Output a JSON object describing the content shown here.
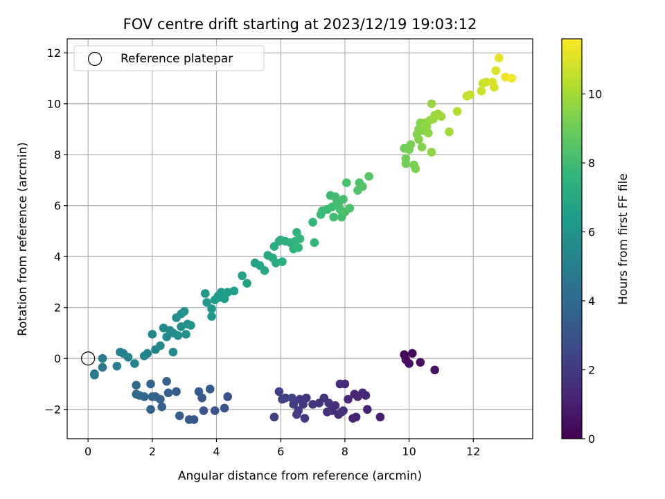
{
  "chart_data": {
    "type": "scatter",
    "title": "FOV centre drift starting at 2023/12/19 19:03:12",
    "xlabel": "Angular distance from reference (arcmin)",
    "ylabel": "Rotation from reference (arcmin)",
    "colorbar_label": "Hours from first FF file",
    "xlim": [
      -0.65,
      13.85
    ],
    "ylim": [
      -3.15,
      12.55
    ],
    "x_ticks": [
      0,
      2,
      4,
      6,
      8,
      10,
      12
    ],
    "y_ticks": [
      -2,
      0,
      2,
      4,
      6,
      8,
      10,
      12
    ],
    "colorbar_range": [
      0,
      11.6
    ],
    "colorbar_ticks": [
      0,
      2,
      4,
      6,
      8,
      10
    ],
    "colormap": "viridis",
    "grid": true,
    "legend": {
      "position": "top-left",
      "entry": "Reference platepar"
    },
    "reference_point": {
      "x": 0,
      "y": 0
    },
    "points": [
      [
        9.85,
        0.15,
        0.1
      ],
      [
        10.1,
        0.2,
        0.2
      ],
      [
        9.9,
        -0.05,
        0.3
      ],
      [
        10.0,
        -0.2,
        0.4
      ],
      [
        10.35,
        -0.15,
        0.5
      ],
      [
        10.8,
        -0.45,
        0.6
      ],
      [
        9.1,
        -2.3,
        1.0
      ],
      [
        8.7,
        -2.0,
        1.1
      ],
      [
        8.35,
        -2.3,
        1.2
      ],
      [
        8.3,
        -1.4,
        1.3
      ],
      [
        8.65,
        -1.45,
        1.35
      ],
      [
        8.0,
        -1.0,
        1.4
      ],
      [
        7.85,
        -1.0,
        1.45
      ],
      [
        7.95,
        -2.05,
        1.5
      ],
      [
        7.8,
        -2.2,
        1.55
      ],
      [
        7.6,
        -2.0,
        1.6
      ],
      [
        7.5,
        -1.75,
        1.65
      ],
      [
        7.35,
        -1.55,
        1.7
      ],
      [
        7.2,
        -1.75,
        1.75
      ],
      [
        7.0,
        -1.8,
        1.8
      ],
      [
        6.8,
        -1.55,
        1.85
      ],
      [
        6.6,
        -1.6,
        1.9
      ],
      [
        6.75,
        -2.35,
        1.95
      ],
      [
        6.55,
        -2.05,
        2.0
      ],
      [
        6.4,
        -1.8,
        2.05
      ],
      [
        6.15,
        -1.55,
        2.1
      ],
      [
        5.95,
        -1.3,
        2.15
      ],
      [
        5.8,
        -2.3,
        2.2
      ],
      [
        6.05,
        -1.6,
        2.25
      ],
      [
        6.35,
        -1.55,
        2.3
      ],
      [
        7.6,
        -2.05,
        1.3
      ],
      [
        8.4,
        -1.5,
        1.25
      ],
      [
        7.45,
        -2.1,
        1.6
      ],
      [
        7.7,
        -1.85,
        1.5
      ],
      [
        8.1,
        -1.6,
        1.4
      ],
      [
        8.25,
        -2.35,
        1.2
      ],
      [
        7.9,
        -2.1,
        1.7
      ],
      [
        8.55,
        -1.35,
        1.3
      ],
      [
        6.5,
        -2.2,
        2.0
      ],
      [
        6.7,
        -1.8,
        1.9
      ],
      [
        4.35,
        -1.5,
        3.0
      ],
      [
        4.25,
        -1.95,
        3.05
      ],
      [
        3.95,
        -2.05,
        3.1
      ],
      [
        3.6,
        -2.05,
        3.15
      ],
      [
        3.55,
        -1.55,
        3.2
      ],
      [
        3.45,
        -1.3,
        3.25
      ],
      [
        3.8,
        -1.2,
        3.3
      ],
      [
        3.15,
        -2.4,
        3.35
      ],
      [
        2.85,
        -2.25,
        3.4
      ],
      [
        2.75,
        -1.3,
        3.45
      ],
      [
        2.5,
        -1.35,
        3.5
      ],
      [
        2.45,
        -0.9,
        3.55
      ],
      [
        2.3,
        -1.9,
        3.6
      ],
      [
        2.25,
        -1.6,
        3.65
      ],
      [
        2.1,
        -1.5,
        3.7
      ],
      [
        1.95,
        -1.0,
        3.75
      ],
      [
        1.95,
        -2.0,
        3.8
      ],
      [
        1.75,
        -1.5,
        3.85
      ],
      [
        1.6,
        -1.45,
        3.9
      ],
      [
        1.5,
        -1.4,
        3.95
      ],
      [
        1.5,
        -1.05,
        4.0
      ],
      [
        2.0,
        -1.5,
        3.75
      ],
      [
        3.3,
        -2.4,
        3.2
      ],
      [
        0.45,
        -0.35,
        4.6
      ],
      [
        0.2,
        -0.65,
        4.7
      ],
      [
        0.2,
        -0.6,
        4.75
      ],
      [
        0.45,
        0.0,
        4.8
      ],
      [
        0.9,
        -0.3,
        4.9
      ],
      [
        1.0,
        0.25,
        5.0
      ],
      [
        1.1,
        0.2,
        5.05
      ],
      [
        1.25,
        0.05,
        5.1
      ],
      [
        1.45,
        -0.2,
        5.15
      ],
      [
        1.75,
        0.1,
        5.2
      ],
      [
        1.85,
        0.2,
        5.25
      ],
      [
        2.1,
        0.35,
        5.3
      ],
      [
        2.0,
        0.95,
        5.35
      ],
      [
        2.25,
        0.5,
        5.4
      ],
      [
        2.35,
        1.2,
        5.45
      ],
      [
        2.45,
        0.85,
        5.5
      ],
      [
        2.65,
        0.25,
        5.55
      ],
      [
        2.65,
        1.0,
        5.6
      ],
      [
        2.75,
        1.6,
        5.65
      ],
      [
        2.8,
        0.9,
        5.7
      ],
      [
        2.9,
        1.25,
        5.75
      ],
      [
        3.05,
        0.95,
        5.8
      ],
      [
        3.1,
        1.35,
        5.85
      ],
      [
        3.0,
        1.85,
        5.9
      ],
      [
        3.2,
        1.3,
        5.95
      ],
      [
        2.55,
        1.1,
        5.6
      ],
      [
        2.9,
        1.75,
        5.8
      ],
      [
        3.65,
        2.55,
        6.1
      ],
      [
        3.7,
        2.2,
        6.15
      ],
      [
        3.85,
        1.95,
        6.2
      ],
      [
        3.85,
        1.65,
        6.25
      ],
      [
        3.95,
        2.3,
        6.3
      ],
      [
        4.1,
        2.4,
        6.35
      ],
      [
        4.15,
        2.6,
        6.4
      ],
      [
        4.25,
        2.35,
        6.45
      ],
      [
        4.35,
        2.6,
        6.5
      ],
      [
        4.55,
        2.65,
        6.55
      ],
      [
        4.8,
        3.25,
        6.6
      ],
      [
        4.95,
        2.95,
        6.7
      ],
      [
        5.2,
        3.75,
        6.75
      ],
      [
        5.35,
        3.65,
        6.8
      ],
      [
        5.5,
        3.45,
        6.85
      ],
      [
        4.05,
        2.45,
        6.4
      ],
      [
        5.6,
        4.05,
        7.0
      ],
      [
        5.75,
        3.95,
        7.05
      ],
      [
        5.85,
        3.75,
        7.1
      ],
      [
        5.8,
        4.4,
        7.15
      ],
      [
        5.95,
        4.6,
        7.2
      ],
      [
        6.0,
        4.65,
        7.25
      ],
      [
        6.05,
        3.8,
        7.3
      ],
      [
        6.15,
        4.6,
        7.35
      ],
      [
        6.3,
        4.55,
        7.4
      ],
      [
        6.4,
        4.3,
        7.45
      ],
      [
        6.45,
        4.6,
        7.5
      ],
      [
        6.5,
        4.95,
        7.55
      ],
      [
        6.55,
        4.35,
        7.6
      ],
      [
        6.6,
        4.7,
        7.65
      ],
      [
        7.05,
        4.55,
        7.7
      ],
      [
        7.0,
        5.35,
        7.75
      ],
      [
        7.25,
        5.65,
        7.8
      ],
      [
        7.3,
        5.8,
        7.85
      ],
      [
        7.55,
        6.4,
        7.9
      ],
      [
        7.6,
        5.95,
        7.95
      ],
      [
        7.65,
        5.55,
        8.0
      ],
      [
        7.75,
        6.2,
        8.05
      ],
      [
        7.85,
        5.85,
        8.1
      ],
      [
        7.9,
        5.55,
        8.15
      ],
      [
        7.95,
        6.25,
        8.2
      ],
      [
        8.05,
        6.9,
        8.25
      ],
      [
        8.15,
        5.9,
        8.3
      ],
      [
        8.4,
        6.6,
        8.35
      ],
      [
        8.45,
        6.9,
        8.4
      ],
      [
        8.55,
        6.75,
        8.45
      ],
      [
        8.75,
        7.15,
        8.5
      ],
      [
        7.7,
        6.35,
        8.0
      ],
      [
        8.0,
        5.75,
        8.2
      ],
      [
        7.45,
        5.85,
        7.9
      ],
      [
        6.4,
        4.45,
        7.5
      ],
      [
        7.8,
        6.05,
        8.05
      ],
      [
        9.85,
        8.25,
        9.0
      ],
      [
        9.9,
        7.85,
        9.05
      ],
      [
        9.9,
        7.65,
        9.1
      ],
      [
        10.0,
        8.2,
        9.15
      ],
      [
        10.05,
        8.4,
        9.2
      ],
      [
        10.15,
        7.6,
        9.25
      ],
      [
        10.2,
        7.45,
        9.3
      ],
      [
        10.25,
        8.8,
        9.35
      ],
      [
        10.3,
        9.0,
        9.4
      ],
      [
        10.35,
        9.25,
        9.45
      ],
      [
        10.45,
        8.95,
        9.5
      ],
      [
        10.5,
        9.25,
        9.55
      ],
      [
        10.55,
        9.1,
        9.6
      ],
      [
        10.6,
        8.85,
        9.65
      ],
      [
        10.65,
        9.35,
        9.7
      ],
      [
        10.7,
        10.0,
        9.75
      ],
      [
        10.75,
        9.4,
        9.8
      ],
      [
        10.8,
        9.55,
        9.85
      ],
      [
        10.9,
        9.6,
        9.9
      ],
      [
        11.0,
        9.5,
        9.95
      ],
      [
        10.7,
        8.1,
        9.6
      ],
      [
        11.25,
        8.9,
        10.0
      ],
      [
        10.3,
        8.6,
        9.4
      ],
      [
        10.4,
        8.3,
        9.45
      ],
      [
        11.5,
        9.7,
        10.3
      ],
      [
        11.8,
        10.3,
        10.5
      ],
      [
        11.9,
        10.35,
        10.55
      ],
      [
        12.25,
        10.5,
        10.7
      ],
      [
        12.3,
        10.8,
        10.75
      ],
      [
        12.4,
        10.85,
        10.8
      ],
      [
        12.6,
        10.85,
        10.9
      ],
      [
        12.65,
        10.65,
        10.95
      ],
      [
        12.7,
        11.3,
        11.0
      ],
      [
        12.8,
        11.8,
        11.2
      ],
      [
        13.0,
        11.05,
        11.3
      ],
      [
        13.2,
        11.0,
        11.4
      ]
    ]
  }
}
